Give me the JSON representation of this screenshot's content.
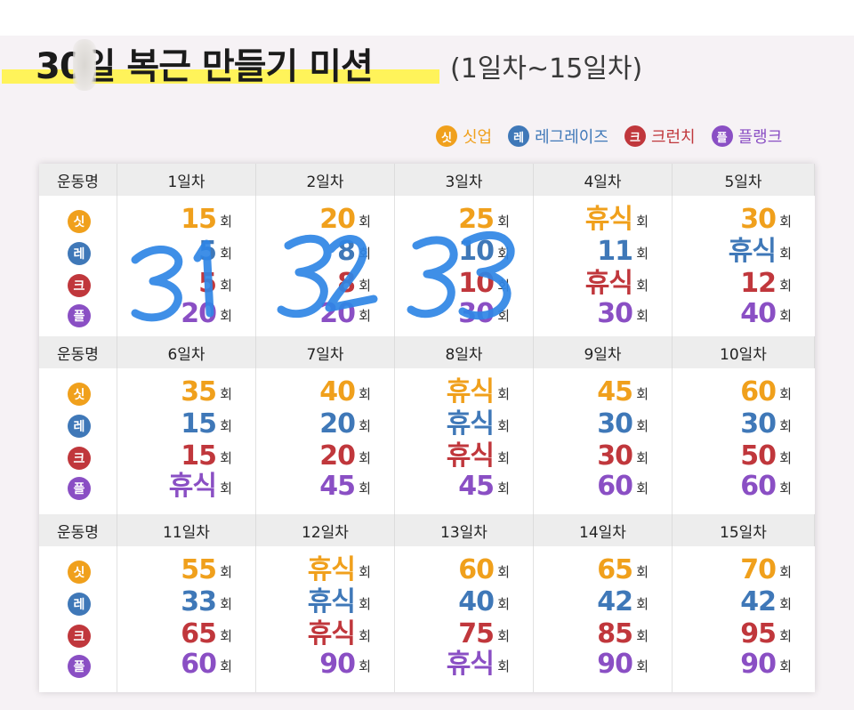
{
  "title": {
    "main": "30일 복근 만들기 미션",
    "sub": "(1일차~15일차)"
  },
  "legend": [
    {
      "badge": "싯",
      "label": "싯업",
      "color": "#f0a01c"
    },
    {
      "badge": "레",
      "label": "레그레이즈",
      "color": "#3f78b8"
    },
    {
      "badge": "크",
      "label": "크런치",
      "color": "#c0373c"
    },
    {
      "badge": "플",
      "label": "플랭크",
      "color": "#8a4fc4"
    }
  ],
  "header_label": "운동명",
  "unit": "회",
  "blocks": [
    {
      "days": [
        "1일차",
        "2일차",
        "3일차",
        "4일차",
        "5일차"
      ],
      "values": [
        [
          "15",
          "5",
          "5",
          "20"
        ],
        [
          "20",
          "8",
          "8",
          "20"
        ],
        [
          "25",
          "10",
          "10",
          "30"
        ],
        [
          "휴식",
          "11",
          "휴식",
          "30"
        ],
        [
          "30",
          "휴식",
          "12",
          "40"
        ]
      ]
    },
    {
      "days": [
        "6일차",
        "7일차",
        "8일차",
        "9일차",
        "10일차"
      ],
      "values": [
        [
          "35",
          "15",
          "15",
          "휴식"
        ],
        [
          "40",
          "20",
          "20",
          "45"
        ],
        [
          "휴식",
          "휴식",
          "휴식",
          "45"
        ],
        [
          "45",
          "30",
          "30",
          "60"
        ],
        [
          "60",
          "30",
          "50",
          "60"
        ]
      ]
    },
    {
      "days": [
        "11일차",
        "12일차",
        "13일차",
        "14일차",
        "15일차"
      ],
      "values": [
        [
          "55",
          "33",
          "65",
          "60"
        ],
        [
          "휴식",
          "휴식",
          "휴식",
          "90"
        ],
        [
          "60",
          "40",
          "75",
          "휴식"
        ],
        [
          "65",
          "42",
          "85",
          "90"
        ],
        [
          "70",
          "42",
          "95",
          "90"
        ]
      ]
    }
  ],
  "handwriting": [
    "31",
    "32",
    "33"
  ],
  "colors": {
    "scribble": "#2f86e6",
    "highlight": "#fff35a"
  }
}
